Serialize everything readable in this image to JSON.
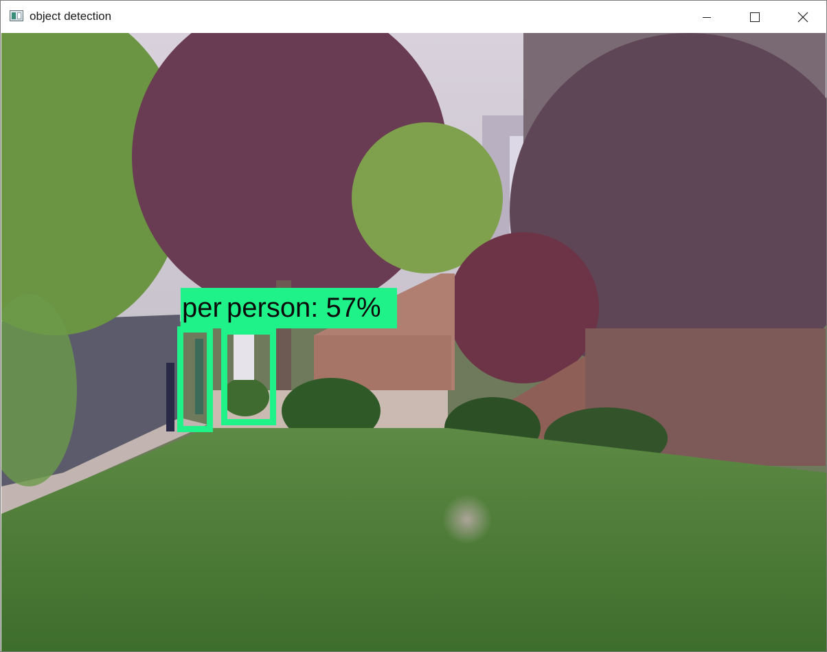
{
  "window": {
    "title": "object detection",
    "controls": {
      "minimize": "minimize-icon",
      "maximize": "maximize-icon",
      "close": "close-icon"
    }
  },
  "detections": [
    {
      "label": "per"
    },
    {
      "label": "person: 57%"
    }
  ],
  "colors": {
    "detection": "#20f28a",
    "label_text": "#0a0a0a"
  }
}
